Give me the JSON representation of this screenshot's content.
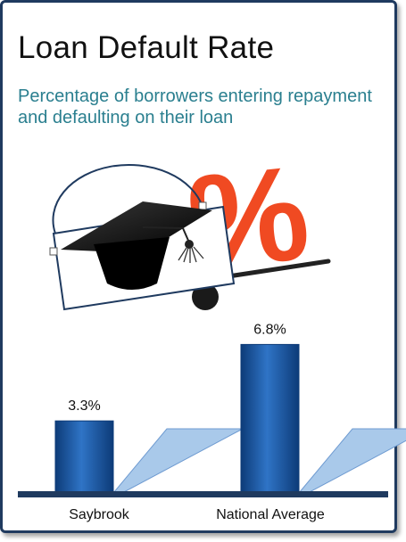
{
  "header": {
    "title": "Loan Default Rate",
    "subtitle": "Percentage of borrowers entering repayment and defaulting on their loan"
  },
  "illustration": {
    "percent_symbol": "%",
    "icons": [
      "graduation-cap-icon",
      "percent-icon",
      "seesaw-icon"
    ]
  },
  "colors": {
    "bar": "#1f5fb0",
    "bar_dark": "#0d3b78",
    "bar_shadow": "#a9c9ea",
    "baseline": "#1f3a5f",
    "title_text": "#111111",
    "subtitle_text": "#2a7f8f",
    "percent_sign": "#f04a22"
  },
  "chart_data": {
    "type": "bar",
    "categories": [
      "Saybrook",
      "National Average"
    ],
    "values": [
      3.3,
      6.8
    ],
    "data_labels": [
      "3.3%",
      "6.8%"
    ],
    "title": "",
    "xlabel": "",
    "ylabel": "",
    "ylim": [
      0,
      8
    ],
    "grid": false,
    "legend": "none"
  }
}
